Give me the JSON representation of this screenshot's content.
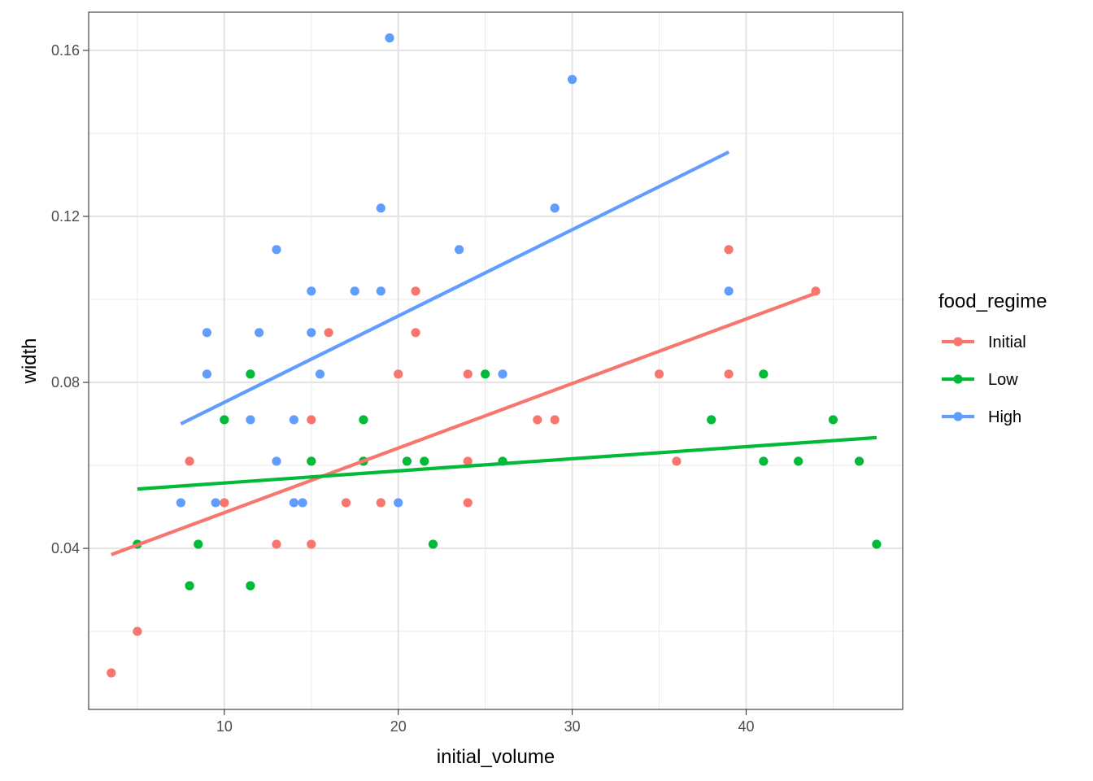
{
  "chart_data": {
    "type": "scatter",
    "title": "",
    "xlabel": "initial_volume",
    "ylabel": "width",
    "xlim": [
      2.2,
      49.0
    ],
    "ylim": [
      0.0012,
      0.1692
    ],
    "x_ticks": [
      10,
      20,
      30,
      40
    ],
    "x_minor_ticks": [
      5,
      15,
      25,
      35,
      45
    ],
    "y_ticks": [
      0.04,
      0.08,
      0.12,
      0.16
    ],
    "y_tick_labels": [
      "0.04",
      "0.08",
      "0.12",
      "0.16"
    ],
    "y_minor_ticks": [
      0.02,
      0.06,
      0.1,
      0.14
    ],
    "grid": true,
    "legend": {
      "title": "food_regime",
      "position": "right"
    },
    "series": [
      {
        "name": "Initial",
        "color": "#F8766D",
        "points": [
          [
            3.5,
            0.01
          ],
          [
            5,
            0.02
          ],
          [
            8,
            0.061
          ],
          [
            10,
            0.051
          ],
          [
            13,
            0.041
          ],
          [
            15,
            0.071
          ],
          [
            15,
            0.041
          ],
          [
            16,
            0.092
          ],
          [
            17,
            0.051
          ],
          [
            18,
            0.061
          ],
          [
            19,
            0.051
          ],
          [
            20,
            0.082
          ],
          [
            21,
            0.102
          ],
          [
            21,
            0.092
          ],
          [
            24,
            0.082
          ],
          [
            24,
            0.061
          ],
          [
            24,
            0.051
          ],
          [
            28,
            0.071
          ],
          [
            29,
            0.071
          ],
          [
            35,
            0.082
          ],
          [
            36,
            0.061
          ],
          [
            39,
            0.112
          ],
          [
            39,
            0.082
          ],
          [
            44,
            0.102
          ]
        ],
        "trend": [
          [
            3.5,
            0.0385
          ],
          [
            44,
            0.1015
          ]
        ]
      },
      {
        "name": "Low",
        "color": "#00BA38",
        "points": [
          [
            5,
            0.041
          ],
          [
            8,
            0.031
          ],
          [
            8.5,
            0.041
          ],
          [
            10,
            0.071
          ],
          [
            11.5,
            0.082
          ],
          [
            11.5,
            0.031
          ],
          [
            15,
            0.061
          ],
          [
            18,
            0.071
          ],
          [
            18,
            0.061
          ],
          [
            20.5,
            0.061
          ],
          [
            21.5,
            0.061
          ],
          [
            22,
            0.041
          ],
          [
            25,
            0.082
          ],
          [
            26,
            0.061
          ],
          [
            38,
            0.071
          ],
          [
            41,
            0.082
          ],
          [
            41,
            0.061
          ],
          [
            43,
            0.061
          ],
          [
            45,
            0.071
          ],
          [
            46.5,
            0.061
          ],
          [
            47.5,
            0.041
          ]
        ],
        "trend": [
          [
            5,
            0.0543
          ],
          [
            47.5,
            0.0667
          ]
        ]
      },
      {
        "name": "High",
        "color": "#619CFF",
        "points": [
          [
            7.5,
            0.051
          ],
          [
            9,
            0.092
          ],
          [
            9,
            0.082
          ],
          [
            9.5,
            0.051
          ],
          [
            11.5,
            0.071
          ],
          [
            12,
            0.092
          ],
          [
            13,
            0.112
          ],
          [
            13,
            0.061
          ],
          [
            14,
            0.071
          ],
          [
            14,
            0.051
          ],
          [
            14.5,
            0.051
          ],
          [
            15,
            0.102
          ],
          [
            15,
            0.092
          ],
          [
            15.5,
            0.082
          ],
          [
            17.5,
            0.102
          ],
          [
            19,
            0.122
          ],
          [
            19,
            0.102
          ],
          [
            19.5,
            0.163
          ],
          [
            20,
            0.051
          ],
          [
            23.5,
            0.112
          ],
          [
            26,
            0.082
          ],
          [
            29,
            0.122
          ],
          [
            30,
            0.153
          ],
          [
            39,
            0.102
          ]
        ],
        "trend": [
          [
            7.5,
            0.07
          ],
          [
            39,
            0.1355
          ]
        ]
      }
    ]
  }
}
